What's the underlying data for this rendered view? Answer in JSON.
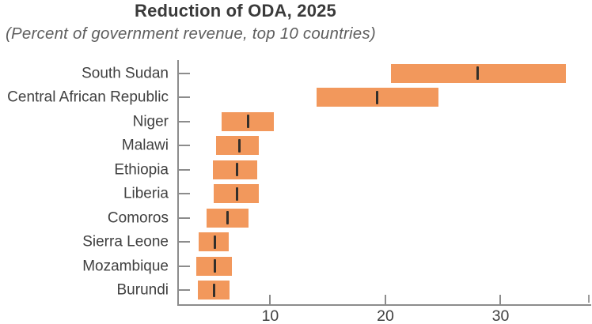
{
  "chart_data": {
    "type": "bar",
    "orientation": "horizontal",
    "variant": "range-bars-with-median-marker",
    "title": "Reduction of ODA, 2025",
    "subtitle": "(Percent of government revenue, top 10 countries)",
    "categories": [
      "South Sudan",
      "Central African Republic",
      "Niger",
      "Malawi",
      "Ethiopia",
      "Liberia",
      "Comoros",
      "Sierra Leone",
      "Mozambique",
      "Burundi"
    ],
    "series": [
      {
        "name": "range_min",
        "values": [
          20.5,
          14.0,
          5.8,
          5.3,
          5.0,
          5.1,
          4.5,
          3.8,
          3.6,
          3.7
        ]
      },
      {
        "name": "range_max",
        "values": [
          35.7,
          24.6,
          10.3,
          9.0,
          8.9,
          9.0,
          8.1,
          6.4,
          6.7,
          6.5
        ]
      },
      {
        "name": "median",
        "values": [
          28.0,
          19.3,
          8.1,
          7.3,
          7.1,
          7.1,
          6.3,
          5.2,
          5.2,
          5.1
        ]
      }
    ],
    "xlabel": "",
    "ylabel": "",
    "xlim": [
      2,
      37.8
    ],
    "xticks": [
      10,
      20,
      30
    ],
    "grid": false,
    "legend": false,
    "colors": {
      "bar": "#F2985C",
      "median_marker": "#332F2B",
      "axis": "#8C8C8C",
      "title_text": "#3A3A3A",
      "subtitle_text": "#5F5F5F",
      "label_text": "#404040"
    }
  }
}
